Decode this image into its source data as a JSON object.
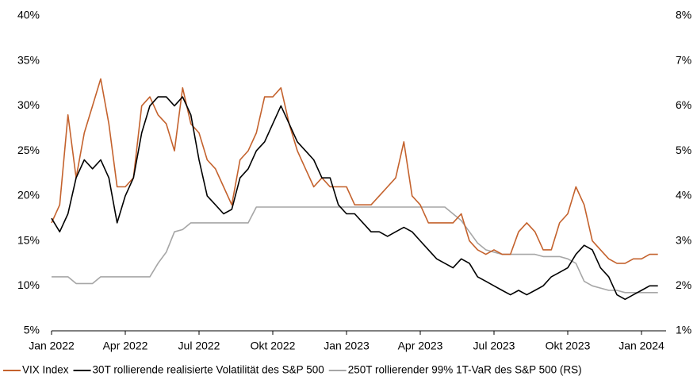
{
  "chart_data": {
    "type": "line",
    "categories": [
      "Jan 2022",
      null,
      null,
      null,
      null,
      null,
      null,
      null,
      null,
      "Apr 2022",
      null,
      null,
      null,
      null,
      null,
      null,
      null,
      null,
      "Jul 2022",
      null,
      null,
      null,
      null,
      null,
      null,
      null,
      null,
      "Okt 2022",
      null,
      null,
      null,
      null,
      null,
      null,
      null,
      null,
      "Jan 2023",
      null,
      null,
      null,
      null,
      null,
      null,
      null,
      null,
      "Apr 2023",
      null,
      null,
      null,
      null,
      null,
      null,
      null,
      null,
      "Jul 2023",
      null,
      null,
      null,
      null,
      null,
      null,
      null,
      null,
      "Okt 2023",
      null,
      null,
      null,
      null,
      null,
      null,
      null,
      null,
      "Jan 2024",
      null,
      null
    ],
    "ylim": [
      5,
      40
    ],
    "yticks": [
      {
        "value": 5,
        "label": "5%"
      },
      {
        "value": 10,
        "label": "10%"
      },
      {
        "value": 15,
        "label": "15%"
      },
      {
        "value": 20,
        "label": "20%"
      },
      {
        "value": 25,
        "label": "25%"
      },
      {
        "value": 30,
        "label": "30%"
      },
      {
        "value": 35,
        "label": "35%"
      },
      {
        "value": 40,
        "label": "40%"
      }
    ],
    "y2lim": [
      1,
      8
    ],
    "y2ticks": [
      {
        "value": 1,
        "label": "1%"
      },
      {
        "value": 2,
        "label": "2%"
      },
      {
        "value": 3,
        "label": "3%"
      },
      {
        "value": 4,
        "label": "4%"
      },
      {
        "value": 5,
        "label": "5%"
      },
      {
        "value": 6,
        "label": "6%"
      },
      {
        "value": 7,
        "label": "7%"
      },
      {
        "value": 8,
        "label": "8%"
      }
    ],
    "grid": false,
    "legend": "bottom",
    "series": [
      {
        "name": "VIX Index",
        "color": "#c4622d",
        "values": [
          17,
          19,
          29,
          22,
          27,
          30,
          33,
          28,
          21,
          21,
          22,
          30,
          31,
          29,
          28,
          25,
          32,
          28,
          27,
          24,
          23,
          21,
          19,
          24,
          25,
          27,
          31,
          31,
          32,
          28,
          25,
          23,
          21,
          22,
          21,
          21,
          21,
          19,
          19,
          19,
          20,
          21,
          22,
          26,
          20,
          19,
          17,
          17,
          17,
          17,
          18,
          15,
          14,
          13.5,
          14,
          13.5,
          13.5,
          16,
          17,
          16,
          14,
          14,
          17,
          18,
          21,
          19,
          15,
          14,
          13,
          12.5,
          12.5,
          13,
          13,
          13.5,
          13.5
        ]
      },
      {
        "name": "30T rollierende realisierte Volatilität des S&P 500",
        "color": "#000000",
        "values": [
          17.5,
          16,
          18,
          22,
          24,
          23,
          24,
          22,
          17,
          20,
          22,
          27,
          30,
          31,
          31,
          30,
          31,
          29,
          24,
          20,
          19,
          18,
          18.5,
          22,
          23,
          25,
          26,
          28,
          30,
          28,
          26,
          25,
          24,
          22,
          22,
          19,
          18,
          18,
          17,
          16,
          16,
          15.5,
          16,
          16.5,
          16,
          15,
          14,
          13,
          12.5,
          12,
          13,
          12.5,
          11,
          10.5,
          10,
          9.5,
          9,
          9.5,
          9,
          9.5,
          10,
          11,
          11.5,
          12,
          13.5,
          14.5,
          14,
          12,
          11,
          9,
          8.5,
          9,
          9.5,
          10,
          10
        ]
      },
      {
        "name": "250T rollierender 99% 1T-VaR des S&P 500 (RS)",
        "color": "#a6a6a6",
        "axis": "y2",
        "values": [
          2.2,
          2.2,
          2.2,
          2.05,
          2.05,
          2.05,
          2.2,
          2.2,
          2.2,
          2.2,
          2.2,
          2.2,
          2.2,
          2.5,
          2.75,
          3.2,
          3.25,
          3.4,
          3.4,
          3.4,
          3.4,
          3.4,
          3.4,
          3.4,
          3.4,
          3.75,
          3.75,
          3.75,
          3.75,
          3.75,
          3.75,
          3.75,
          3.75,
          3.75,
          3.75,
          3.75,
          3.75,
          3.75,
          3.75,
          3.75,
          3.75,
          3.75,
          3.75,
          3.75,
          3.75,
          3.75,
          3.75,
          3.75,
          3.75,
          3.6,
          3.45,
          3.2,
          2.95,
          2.8,
          2.75,
          2.7,
          2.7,
          2.7,
          2.7,
          2.7,
          2.65,
          2.65,
          2.65,
          2.6,
          2.5,
          2.1,
          2.0,
          1.95,
          1.9,
          1.9,
          1.85,
          1.85,
          1.85,
          1.85,
          1.85
        ]
      }
    ]
  }
}
